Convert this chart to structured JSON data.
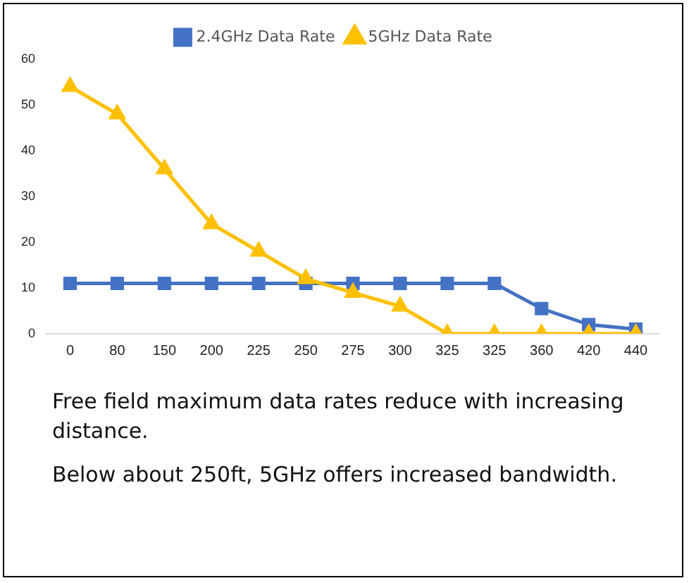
{
  "chart_data": {
    "type": "line",
    "categories": [
      "0",
      "80",
      "150",
      "200",
      "225",
      "250",
      "275",
      "300",
      "325",
      "325",
      "360",
      "420",
      "440"
    ],
    "series": [
      {
        "name": "2.4GHz Data Rate",
        "color": "#4472c4",
        "marker": "square",
        "values": [
          11,
          11,
          11,
          11,
          11,
          11,
          11,
          11,
          11,
          11,
          5.5,
          2,
          1
        ]
      },
      {
        "name": "5GHz Data Rate",
        "color": "#ffc000",
        "marker": "triangle",
        "values": [
          54,
          48,
          36,
          24,
          18,
          12,
          9,
          6,
          0,
          0,
          0,
          0,
          0
        ]
      }
    ],
    "ylim": [
      0,
      60
    ],
    "yticks": [
      0,
      10,
      20,
      30,
      40,
      50,
      60
    ],
    "grid": false,
    "legend": "top",
    "line_style": "solid",
    "annotations": [
      "Free field maximum data rates reduce with increasing distance.",
      "Below about 250ft, 5GHz offers increased bandwidth."
    ]
  }
}
